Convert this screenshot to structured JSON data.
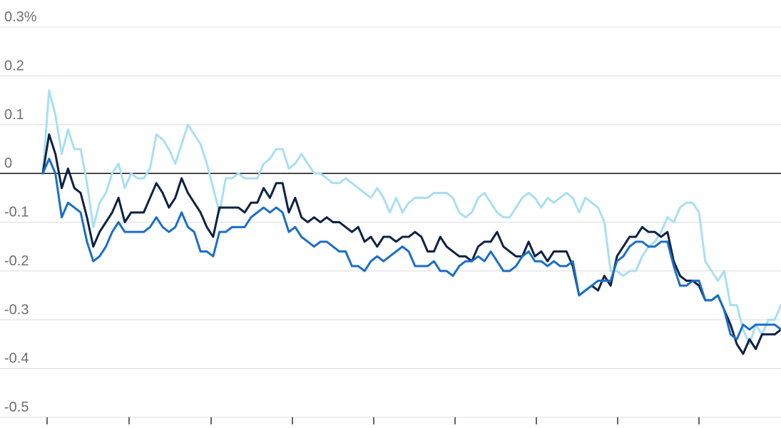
{
  "chart_data": {
    "type": "line",
    "title": "",
    "xlabel": "",
    "ylabel": "",
    "y_tick_labels": [
      "0.3%",
      "0.2",
      "0.1",
      "0",
      "-0.1",
      "-0.2",
      "-0.3",
      "-0.4",
      "-0.5"
    ],
    "y_ticks": [
      0.3,
      0.2,
      0.1,
      0,
      -0.1,
      -0.2,
      -0.3,
      -0.4,
      -0.5
    ],
    "ylim": [
      -0.5,
      0.3
    ],
    "x_tick_labels": [],
    "grid": true,
    "legend": "none",
    "n_points": 118,
    "series": [
      {
        "color": "#a8dff2",
        "values": [
          0.0,
          0.17,
          0.12,
          0.04,
          0.09,
          0.05,
          0.05,
          -0.02,
          -0.11,
          -0.06,
          -0.04,
          0.0,
          0.02,
          -0.03,
          0.0,
          -0.01,
          -0.01,
          0.01,
          0.08,
          0.07,
          0.05,
          0.02,
          0.06,
          0.1,
          0.08,
          0.06,
          0.02,
          -0.03,
          -0.08,
          -0.01,
          -0.01,
          0.0,
          -0.01,
          -0.01,
          -0.01,
          0.02,
          0.03,
          0.05,
          0.05,
          0.01,
          0.02,
          0.04,
          0.02,
          0.0,
          0.0,
          -0.01,
          -0.02,
          -0.02,
          -0.01,
          -0.02,
          -0.03,
          -0.04,
          -0.05,
          -0.03,
          -0.05,
          -0.08,
          -0.05,
          -0.08,
          -0.06,
          -0.05,
          -0.05,
          -0.05,
          -0.04,
          -0.04,
          -0.04,
          -0.05,
          -0.08,
          -0.09,
          -0.08,
          -0.05,
          -0.04,
          -0.06,
          -0.08,
          -0.09,
          -0.09,
          -0.07,
          -0.05,
          -0.04,
          -0.05,
          -0.07,
          -0.05,
          -0.06,
          -0.05,
          -0.04,
          -0.05,
          -0.08,
          -0.05,
          -0.06,
          -0.07,
          -0.1,
          -0.2,
          -0.2,
          -0.21,
          -0.2,
          -0.2,
          -0.17,
          -0.15,
          -0.14,
          -0.12,
          -0.09,
          -0.1,
          -0.07,
          -0.06,
          -0.06,
          -0.08,
          -0.18,
          -0.2,
          -0.22,
          -0.2,
          -0.27,
          -0.27,
          -0.32,
          -0.35,
          -0.31,
          -0.33,
          -0.3,
          -0.3,
          -0.27
        ]
      },
      {
        "color": "#0d2244",
        "values": [
          0.0,
          0.08,
          0.04,
          -0.03,
          0.01,
          -0.03,
          -0.04,
          -0.09,
          -0.15,
          -0.12,
          -0.1,
          -0.08,
          -0.05,
          -0.1,
          -0.08,
          -0.08,
          -0.08,
          -0.05,
          -0.02,
          -0.04,
          -0.07,
          -0.05,
          -0.01,
          -0.04,
          -0.06,
          -0.08,
          -0.11,
          -0.13,
          -0.07,
          -0.07,
          -0.07,
          -0.07,
          -0.08,
          -0.06,
          -0.06,
          -0.03,
          -0.05,
          -0.02,
          -0.02,
          -0.08,
          -0.05,
          -0.09,
          -0.1,
          -0.09,
          -0.1,
          -0.09,
          -0.1,
          -0.1,
          -0.11,
          -0.12,
          -0.11,
          -0.14,
          -0.13,
          -0.15,
          -0.13,
          -0.13,
          -0.14,
          -0.13,
          -0.13,
          -0.12,
          -0.13,
          -0.16,
          -0.16,
          -0.13,
          -0.15,
          -0.16,
          -0.17,
          -0.17,
          -0.18,
          -0.15,
          -0.14,
          -0.14,
          -0.12,
          -0.15,
          -0.16,
          -0.17,
          -0.17,
          -0.14,
          -0.17,
          -0.16,
          -0.18,
          -0.16,
          -0.16,
          -0.16,
          -0.19,
          -0.25,
          -0.24,
          -0.23,
          -0.24,
          -0.21,
          -0.23,
          -0.17,
          -0.15,
          -0.13,
          -0.13,
          -0.11,
          -0.12,
          -0.12,
          -0.13,
          -0.12,
          -0.18,
          -0.21,
          -0.22,
          -0.22,
          -0.23,
          -0.26,
          -0.26,
          -0.25,
          -0.28,
          -0.31,
          -0.35,
          -0.37,
          -0.34,
          -0.36,
          -0.33,
          -0.33,
          -0.33,
          -0.32
        ]
      },
      {
        "color": "#1a6ec9",
        "values": [
          0.0,
          0.03,
          0.0,
          -0.09,
          -0.06,
          -0.07,
          -0.08,
          -0.14,
          -0.18,
          -0.17,
          -0.15,
          -0.12,
          -0.1,
          -0.12,
          -0.12,
          -0.12,
          -0.12,
          -0.11,
          -0.09,
          -0.11,
          -0.12,
          -0.11,
          -0.08,
          -0.11,
          -0.12,
          -0.16,
          -0.16,
          -0.17,
          -0.12,
          -0.12,
          -0.11,
          -0.11,
          -0.11,
          -0.09,
          -0.08,
          -0.07,
          -0.08,
          -0.07,
          -0.08,
          -0.12,
          -0.11,
          -0.13,
          -0.14,
          -0.15,
          -0.14,
          -0.14,
          -0.15,
          -0.16,
          -0.16,
          -0.19,
          -0.19,
          -0.2,
          -0.18,
          -0.17,
          -0.18,
          -0.17,
          -0.16,
          -0.15,
          -0.16,
          -0.19,
          -0.19,
          -0.19,
          -0.18,
          -0.2,
          -0.2,
          -0.21,
          -0.19,
          -0.18,
          -0.18,
          -0.17,
          -0.18,
          -0.16,
          -0.18,
          -0.2,
          -0.2,
          -0.19,
          -0.17,
          -0.16,
          -0.18,
          -0.18,
          -0.19,
          -0.18,
          -0.19,
          -0.19,
          -0.18,
          -0.25,
          -0.24,
          -0.23,
          -0.22,
          -0.22,
          -0.22,
          -0.18,
          -0.17,
          -0.15,
          -0.14,
          -0.14,
          -0.15,
          -0.15,
          -0.14,
          -0.14,
          -0.19,
          -0.23,
          -0.23,
          -0.22,
          -0.22,
          -0.26,
          -0.26,
          -0.25,
          -0.28,
          -0.33,
          -0.34,
          -0.31,
          -0.32,
          -0.31,
          -0.31,
          -0.31,
          -0.31,
          -0.32
        ]
      }
    ]
  }
}
